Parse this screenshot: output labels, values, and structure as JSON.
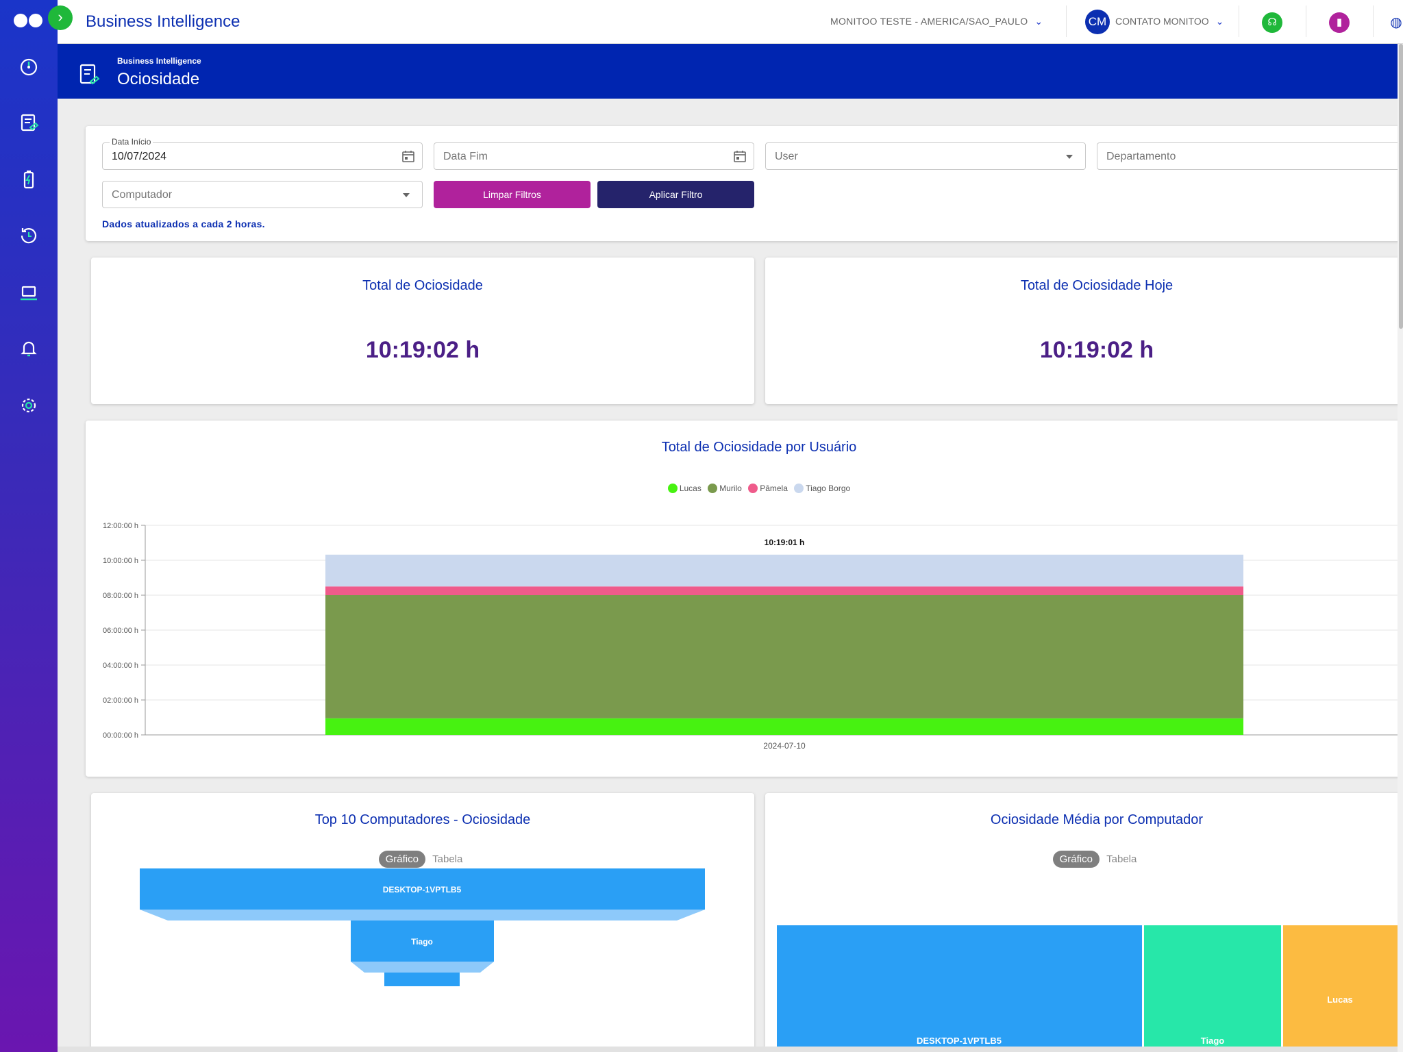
{
  "topbar": {
    "app_title": "Business Intelligence",
    "tenant": "MONITOO TESTE - AMERICA/SAO_PAULO",
    "user_initials": "CM",
    "user_name": "CONTATO MONITOO"
  },
  "page_header": {
    "breadcrumb": "Business Intelligence",
    "title": "Ociosidade"
  },
  "filters": {
    "start_label": "Data Início",
    "start_value": "10/07/2024",
    "end_placeholder": "Data Fim",
    "user_placeholder": "User",
    "department_placeholder": "Departamento",
    "computer_placeholder": "Computador",
    "clear_label": "Limpar Filtros",
    "apply_label": "Aplicar Filtro",
    "note": "Dados atualizados a cada 2 horas."
  },
  "kpis": {
    "total_title": "Total de Ociosidade",
    "total_value": "10:19:02 h",
    "today_title": "Total de Ociosidade Hoje",
    "today_value": "10:19:02 h"
  },
  "colors": {
    "lucas": "#47f211",
    "murilo": "#7a9a4d",
    "pamela": "#ef5b8b",
    "tiago_borgo": "#cad8ee",
    "funnel": "#2a9ff5",
    "treemap_1": "#2a9ff5",
    "treemap_2": "#27e7a9",
    "treemap_3": "#fcbb41",
    "primary": "#0c2fb1",
    "clear_button": "#b0229c",
    "apply_button": "#25236b"
  },
  "chart_data": [
    {
      "type": "bar",
      "stacked": true,
      "title": "Total de Ociosidade por Usuário",
      "categories": [
        "2024-07-10"
      ],
      "y_ticks": [
        "00:00:00 h",
        "02:00:00 h",
        "04:00:00 h",
        "06:00:00 h",
        "08:00:00 h",
        "10:00:00 h",
        "12:00:00 h"
      ],
      "ylim_hours": [
        0,
        12
      ],
      "total_label": "10:19:01 h",
      "legend_position": "top-center",
      "series": [
        {
          "name": "Lucas",
          "values_hours": [
            0.95
          ]
        },
        {
          "name": "Murilo",
          "values_hours": [
            7.05
          ]
        },
        {
          "name": "Pâmela",
          "values_hours": [
            0.5
          ]
        },
        {
          "name": "Tiago Borgo",
          "values_hours": [
            1.82
          ]
        }
      ]
    },
    {
      "type": "funnel",
      "title": "Top 10 Computadores - Ociosidade",
      "view_active": "Gráfico",
      "view_other": "Tabela",
      "labels": [
        "DESKTOP-1VPTLB5",
        "Tiago"
      ]
    },
    {
      "type": "treemap",
      "title": "Ociosidade Média por Computador",
      "view_active": "Gráfico",
      "view_other": "Tabela",
      "labels": [
        "DESKTOP-1VPTLB5",
        "Tiago",
        "Lucas"
      ]
    }
  ]
}
